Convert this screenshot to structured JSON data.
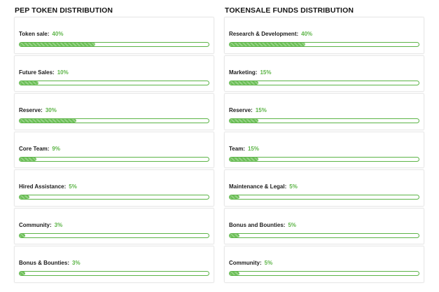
{
  "accent_color": "#5cb447",
  "left": {
    "title": "PEP TOKEN DISTRIBUTION",
    "items": [
      {
        "label": "Token sale:",
        "percent": "40%",
        "value": 0.4
      },
      {
        "label": "Future Sales:",
        "percent": "10%",
        "value": 0.1
      },
      {
        "label": "Reserve:",
        "percent": "30%",
        "value": 0.3
      },
      {
        "label": "Core Team:",
        "percent": "9%",
        "value": 0.09
      },
      {
        "label": "Hired Assistance:",
        "percent": "5%",
        "value": 0.05
      },
      {
        "label": "Community:",
        "percent": "3%",
        "value": 0.03
      },
      {
        "label": "Bonus & Bounties:",
        "percent": "3%",
        "value": 0.03
      }
    ]
  },
  "right": {
    "title": "TOKENSALE FUNDS DISTRIBUTION",
    "items": [
      {
        "label": "Research & Development:",
        "percent": "40%",
        "value": 0.4
      },
      {
        "label": "Marketing:",
        "percent": "15%",
        "value": 0.15
      },
      {
        "label": "Reserve:",
        "percent": "15%",
        "value": 0.15
      },
      {
        "label": "Team:",
        "percent": "15%",
        "value": 0.15
      },
      {
        "label": "Maintenance & Legal:",
        "percent": "5%",
        "value": 0.05
      },
      {
        "label": "Bonus and Bounties:",
        "percent": "5%",
        "value": 0.05
      },
      {
        "label": "Community:",
        "percent": "5%",
        "value": 0.05
      }
    ]
  }
}
